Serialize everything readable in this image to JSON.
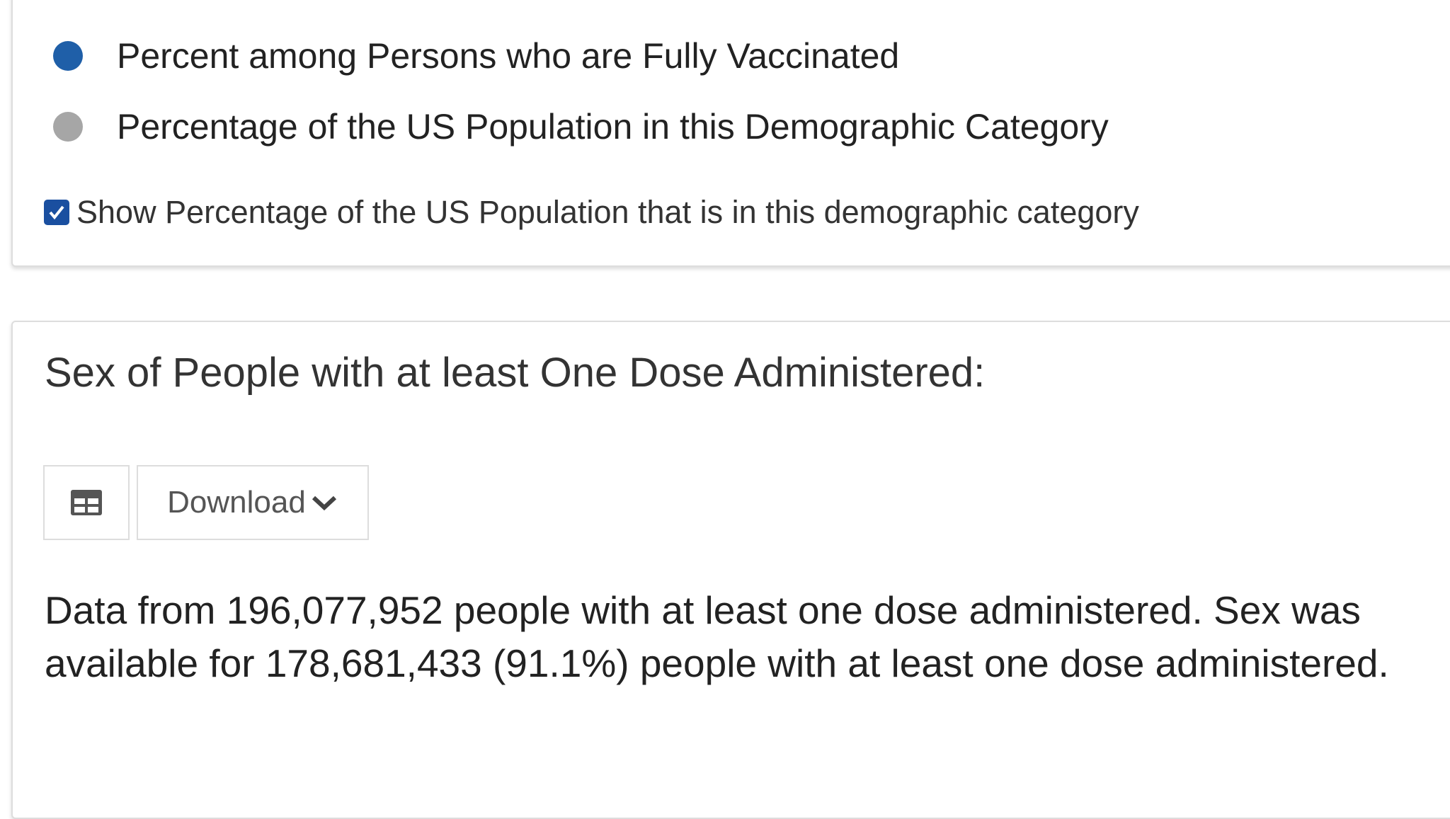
{
  "legend": {
    "items": [
      {
        "label": "Percent among Persons who are Fully Vaccinated",
        "color": "#1f5fa8"
      },
      {
        "label": "Percentage of the US Population in this Demographic Category",
        "color": "#a6a6a6"
      }
    ]
  },
  "checkbox": {
    "label": "Show Percentage of the US Population that is in this demographic category",
    "checked": true
  },
  "section": {
    "title": "Sex of People with at least One Dose Administered:",
    "download_button": "Download",
    "description": "Data from 196,077,952 people with at least one dose administered. Sex was available for 178,681,433 (91.1%) people with at least one dose administered."
  }
}
